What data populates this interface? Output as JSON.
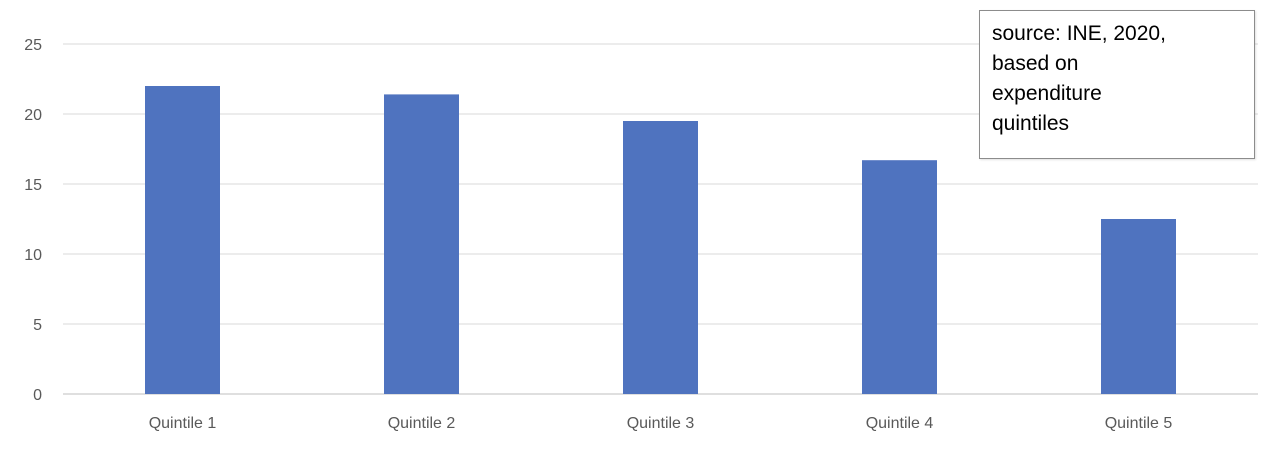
{
  "chart_data": {
    "type": "bar",
    "categories": [
      "Quintile 1",
      "Quintile 2",
      "Quintile 3",
      "Quintile 4",
      "Quintile 5"
    ],
    "values": [
      22.0,
      21.4,
      19.5,
      16.7,
      12.5
    ],
    "yticks": [
      "0",
      "5",
      "10",
      "15",
      "20",
      "25"
    ],
    "ylim": [
      0,
      25
    ],
    "grid": true,
    "bar_color": "#4f73bf",
    "annotation": "source: INE, 2020,\nbased on\nexpenditure\nquintiles"
  }
}
